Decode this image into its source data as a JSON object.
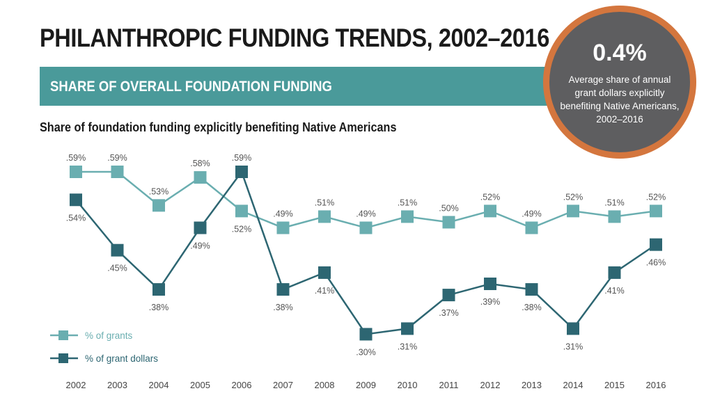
{
  "title": "PHILANTHROPIC FUNDING TRENDS, 2002–2016",
  "band_label": "SHARE OF OVERALL FOUNDATION FUNDING",
  "subtitle": "Share of foundation funding explicitly benefiting Native Americans",
  "callout": {
    "value": "0.4%",
    "text": "Average share of annual grant dollars explicitly benefiting Native Americans, 2002–2016"
  },
  "colors": {
    "grants": "#6aaeb0",
    "dollars": "#2d6672",
    "band": "#4a9a9a",
    "callout_fill": "#5e5e60",
    "callout_ring": "#d4763e"
  },
  "chart_data": {
    "type": "line",
    "categories": [
      "2002",
      "2003",
      "2004",
      "2005",
      "2006",
      "2007",
      "2008",
      "2009",
      "2010",
      "2011",
      "2012",
      "2013",
      "2014",
      "2015",
      "2016"
    ],
    "series": [
      {
        "name": "% of grants",
        "values": [
          0.59,
          0.59,
          0.53,
          0.58,
          0.52,
          0.49,
          0.51,
          0.49,
          0.51,
          0.5,
          0.52,
          0.49,
          0.52,
          0.51,
          0.52
        ],
        "labels": [
          ".59%",
          ".59%",
          ".53%",
          ".58%",
          ".52%",
          ".49%",
          ".51%",
          ".49%",
          ".51%",
          ".50%",
          ".52%",
          ".49%",
          ".52%",
          ".51%",
          ".52%"
        ]
      },
      {
        "name": "% of grant dollars",
        "values": [
          0.54,
          0.45,
          0.38,
          0.49,
          0.59,
          0.38,
          0.41,
          0.3,
          0.31,
          0.37,
          0.39,
          0.38,
          0.31,
          0.41,
          0.46
        ],
        "labels": [
          ".54%",
          ".45%",
          ".38%",
          ".49%",
          ".59%",
          ".38%",
          ".41%",
          ".30%",
          ".31%",
          ".37%",
          ".39%",
          ".38%",
          ".31%",
          ".41%",
          ".46%"
        ]
      }
    ],
    "legend_position": "bottom-left",
    "grid": false
  }
}
